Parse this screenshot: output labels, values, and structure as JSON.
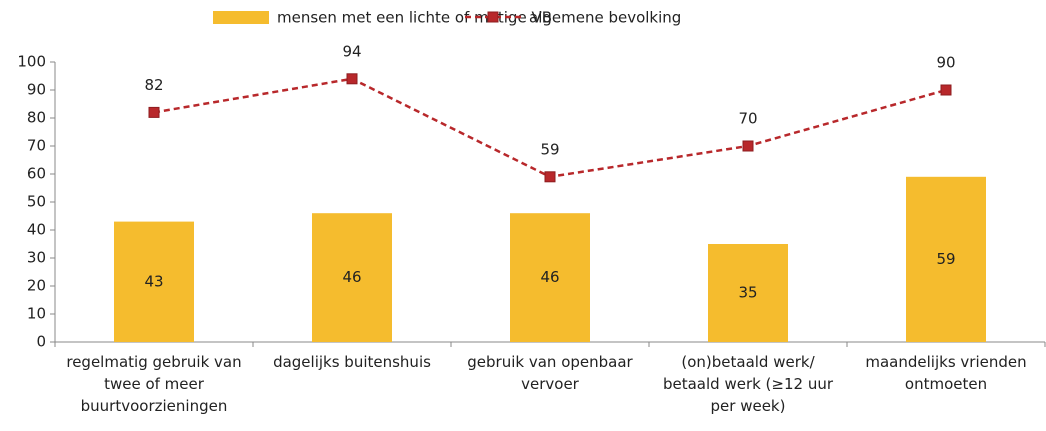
{
  "chart_data": {
    "type": "bar_line",
    "categories": [
      [
        "regelmatig gebruik van",
        "twee of meer",
        "buurtvoorzieningen"
      ],
      [
        "dagelijks buitenshuis"
      ],
      [
        "gebruik van openbaar",
        "vervoer"
      ],
      [
        "(on)betaald werk/",
        "betaald werk (≥12 uur",
        "per week)"
      ],
      [
        "maandelijks vrienden",
        "ontmoeten"
      ]
    ],
    "series": [
      {
        "name": "mensen met een lichte of matige VB",
        "type": "bar",
        "color": "#f5bc2e",
        "values": [
          43,
          46,
          46,
          35,
          59
        ]
      },
      {
        "name": "algemene bevolking",
        "type": "line",
        "color": "#b8282b",
        "values": [
          82,
          94,
          59,
          70,
          90
        ]
      }
    ],
    "ylim": [
      0,
      100
    ],
    "yticks": [
      0,
      10,
      20,
      30,
      40,
      50,
      60,
      70,
      80,
      90,
      100
    ],
    "legend": "top"
  }
}
